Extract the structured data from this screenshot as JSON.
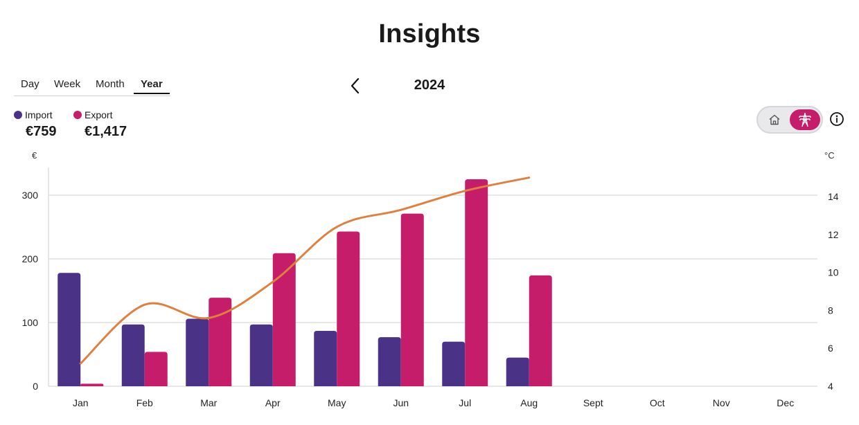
{
  "page": {
    "title": "Insights"
  },
  "period_tabs": [
    {
      "label": "Day",
      "active": false
    },
    {
      "label": "Week",
      "active": false
    },
    {
      "label": "Month",
      "active": false
    },
    {
      "label": "Year",
      "active": true
    }
  ],
  "navigation": {
    "year": "2024",
    "prev_icon": "chevron-left-icon"
  },
  "legend": [
    {
      "label": "Import",
      "value": "€759",
      "color": "#4a3287"
    },
    {
      "label": "Export",
      "value": "€1,417",
      "color": "#c61d6b"
    }
  ],
  "toggle": {
    "home_icon": "home-icon",
    "grid_icon": "pylon-icon",
    "selected": "grid"
  },
  "info_icon": "info-icon",
  "axis_units": {
    "left": "€",
    "right": "°C"
  },
  "colors": {
    "import": "#4a3287",
    "export": "#c61d6b",
    "temperature": "#e0803f",
    "gridline": "#cfcfcf"
  },
  "chart_data": {
    "type": "bar",
    "categories": [
      "Jan",
      "Feb",
      "Mar",
      "Apr",
      "May",
      "Jun",
      "Jul",
      "Aug",
      "Sept",
      "Oct",
      "Nov",
      "Dec"
    ],
    "series": [
      {
        "name": "Import",
        "values": [
          178,
          97,
          106,
          97,
          87,
          77,
          70,
          45,
          null,
          null,
          null,
          null
        ]
      },
      {
        "name": "Export",
        "values": [
          4,
          54,
          139,
          209,
          243,
          271,
          325,
          174,
          null,
          null,
          null,
          null
        ]
      }
    ],
    "temperature_line": {
      "values": [
        5.2,
        8.3,
        7.6,
        9.5,
        12.4,
        13.3,
        14.3,
        15.0,
        null,
        null,
        null,
        null
      ]
    },
    "ylim": [
      0,
      340
    ],
    "yticks": [
      0,
      100,
      200,
      300
    ],
    "y2lim": [
      4,
      15.6
    ],
    "y2ticks": [
      4,
      6,
      8,
      10,
      12,
      14
    ],
    "grid": true
  }
}
